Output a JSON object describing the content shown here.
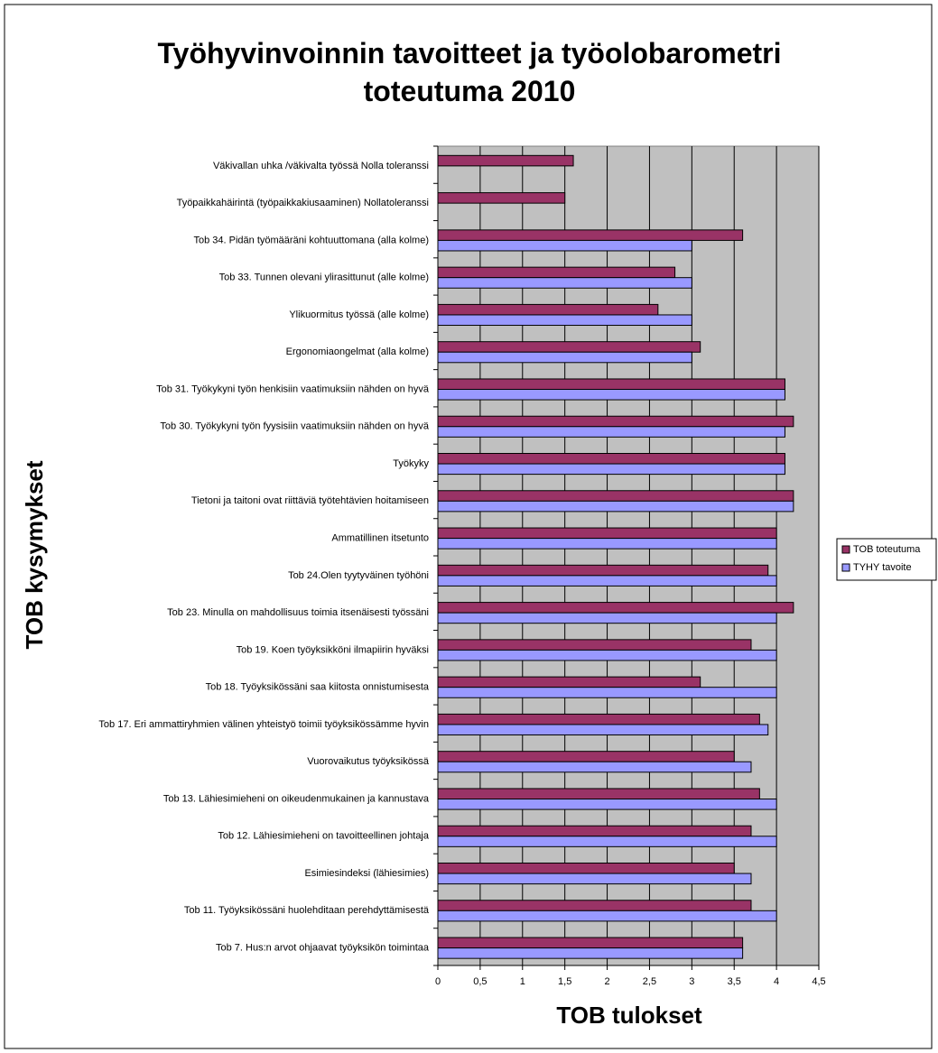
{
  "chart_data": {
    "type": "bar",
    "orientation": "horizontal",
    "title": "Työhyvinvoinnin tavoitteet ja työolobarometri toteutuma 2010",
    "y_label": "TOB kysymykset",
    "x_label": "TOB tulokset",
    "categories": [
      "Väkivallan uhka /väkivalta työssä Nolla toleranssi",
      "Työpaikkahäirintä (työpaikkakiusaaminen) Nollatoleranssi",
      "Tob 34. Pidän työmääräni kohtuuttomana (alla kolme)",
      "Tob 33. Tunnen olevani ylirasittunut (alle kolme)",
      "Ylikuormitus työssä (alle kolme)",
      "Ergonomiaongelmat (alla kolme)",
      "Tob 31. Työkykyni työn henkisiin vaatimuksiin nähden on hyvä",
      "Tob 30. Työkykyni työn fyysisiin vaatimuksiin nähden on hyvä",
      "Työkyky",
      "Tietoni ja taitoni ovat riittäviä työtehtävien hoitamiseen",
      "Ammatillinen itsetunto",
      "Tob 24.Olen tyytyväinen työhöni",
      "Tob 23. Minulla on mahdollisuus toimia itsenäisesti työssäni",
      "Tob 19. Koen työyksikköni ilmapiirin hyväksi",
      "Tob 18. Työyksikössäni saa kiitosta onnistumisesta",
      "Tob 17. Eri ammattiryhmien välinen yhteistyö toimii työyksikössämme hyvin",
      "Vuorovaikutus työyksikössä",
      "Tob 13. Lähiesimieheni on oikeudenmukainen ja kannustava",
      "Tob 12. Lähiesimieheni on tavoitteellinen johtaja",
      "Esimiesindeksi (lähiesimies)",
      "Tob 11. Työyksikössäni huolehditaan perehdyttämisestä",
      "Tob 7. Hus:n arvot ohjaavat työyksikön toimintaa"
    ],
    "series": [
      {
        "name": "TOB toteutuma",
        "color": "#993366",
        "values": [
          1.6,
          1.5,
          3.6,
          2.8,
          2.6,
          3.1,
          4.1,
          4.2,
          4.1,
          4.2,
          4.0,
          3.9,
          4.2,
          3.7,
          3.1,
          3.8,
          3.5,
          3.8,
          3.7,
          3.5,
          3.7,
          3.6
        ]
      },
      {
        "name": "TYHY tavoite",
        "color": "#9999ff",
        "values": [
          null,
          null,
          3.0,
          3.0,
          3.0,
          3.0,
          4.1,
          4.1,
          4.1,
          4.2,
          4.0,
          4.0,
          4.0,
          4.0,
          4.0,
          3.9,
          3.7,
          4.0,
          4.0,
          3.7,
          4.0,
          3.6
        ]
      }
    ],
    "xlim": [
      0,
      4.5
    ],
    "xticks": [
      0,
      {
        "value": 0.5,
        "label": "0,5"
      },
      1,
      {
        "value": 1.5,
        "label": "1,5"
      },
      2,
      {
        "value": 2.5,
        "label": "2,5"
      },
      3,
      {
        "value": 3.5,
        "label": "3,5"
      },
      4,
      {
        "value": 4.5,
        "label": "4,5"
      }
    ],
    "grid": true,
    "plot_background": "#c0c0c0",
    "legend": "right"
  }
}
